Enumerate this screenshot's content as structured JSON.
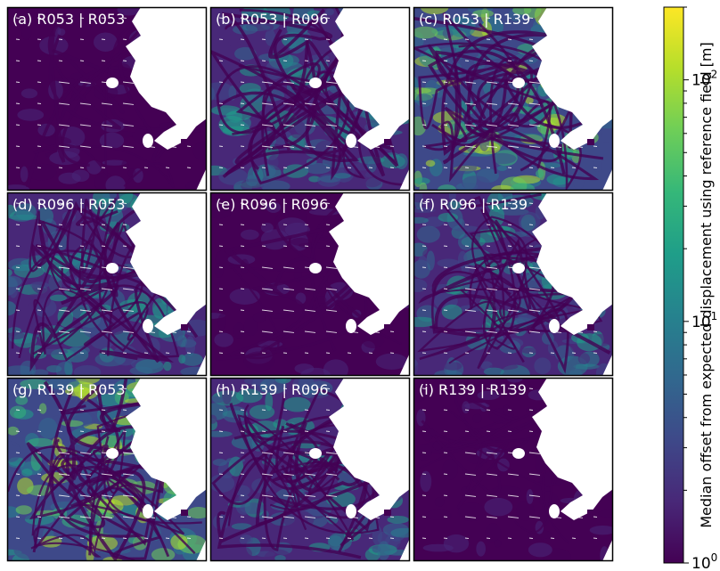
{
  "chart_data": {
    "type": "heatmap",
    "layout": "3x3 grid of map panels with shared colorbar",
    "panels": [
      {
        "label": "(a) R053 | R053",
        "row": 0,
        "col": 0,
        "level": "low"
      },
      {
        "label": "(b) R053 | R096",
        "row": 0,
        "col": 1,
        "level": "medium"
      },
      {
        "label": "(c) R053 | R139",
        "row": 0,
        "col": 2,
        "level": "high"
      },
      {
        "label": "(d) R096 | R053",
        "row": 1,
        "col": 0,
        "level": "medium"
      },
      {
        "label": "(e) R096 | R096",
        "row": 1,
        "col": 1,
        "level": "low"
      },
      {
        "label": "(f) R096 | R139",
        "row": 1,
        "col": 2,
        "level": "medium"
      },
      {
        "label": "(g) R139 | R053",
        "row": 2,
        "col": 0,
        "level": "high"
      },
      {
        "label": "(h) R139 | R096",
        "row": 2,
        "col": 1,
        "level": "medium"
      },
      {
        "label": "(i) R139 | R139",
        "row": 2,
        "col": 2,
        "level": "low"
      }
    ],
    "colorbar": {
      "label": "Median offset from expected displacement using reference field [m]",
      "scale": "log",
      "range": [
        1,
        200
      ],
      "ticks": [
        {
          "value": 1,
          "base": "10",
          "exp": "0"
        },
        {
          "value": 10,
          "base": "10",
          "exp": "1"
        },
        {
          "value": 100,
          "base": "10",
          "exp": "2"
        }
      ],
      "colormap": "viridis"
    }
  },
  "colors": {
    "viridis": [
      "#440154",
      "#482878",
      "#3e4989",
      "#31688e",
      "#26828e",
      "#1f9e89",
      "#35b779",
      "#6ece58",
      "#b5de2b",
      "#fde725"
    ],
    "low_bg": "#440154",
    "arrow": "#ffffff",
    "mask": "#ffffff"
  }
}
